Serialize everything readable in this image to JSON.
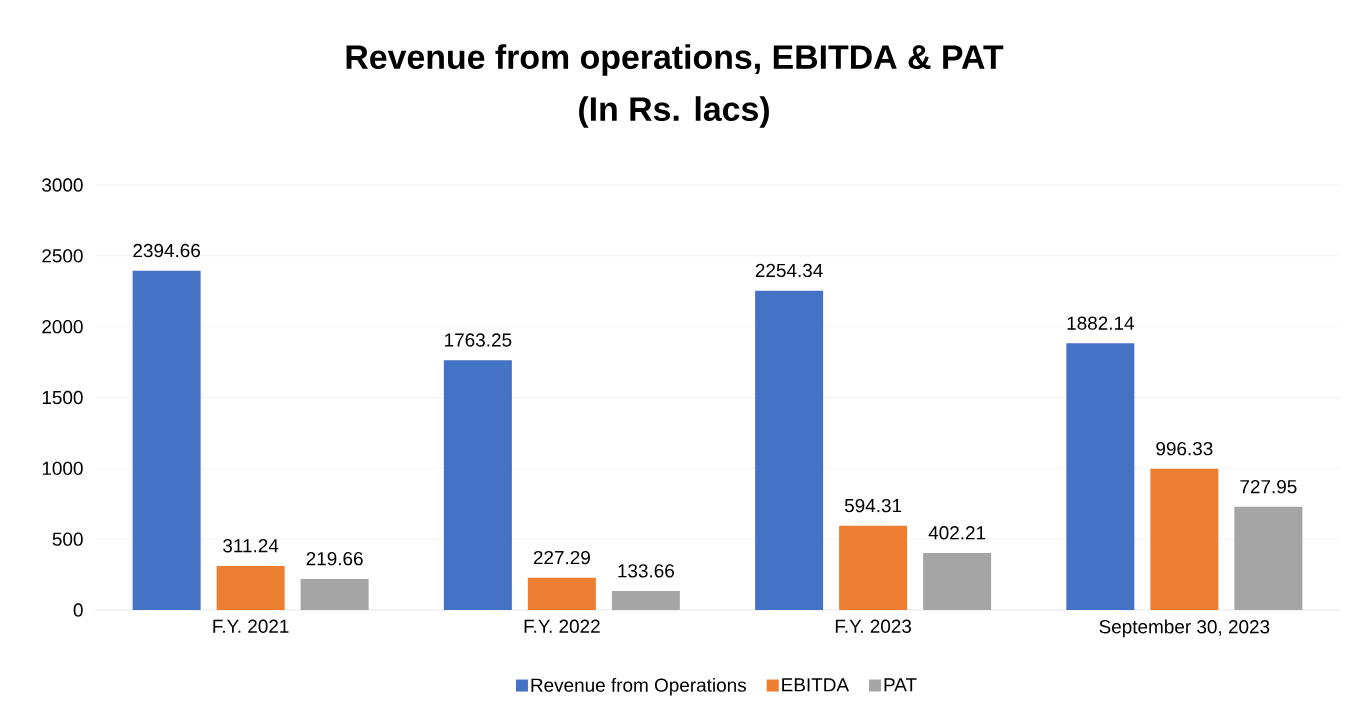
{
  "chart_data": {
    "type": "bar",
    "title": "Revenue from operations, EBITDA & PAT",
    "subtitle": "(In Rs. lacs)",
    "categories": [
      "F.Y. 2021",
      "F.Y. 2022",
      "F.Y. 2023",
      "September 30, 2023"
    ],
    "series": [
      {
        "name": "Revenue from Operations",
        "color": "#4472c4",
        "values": [
          2394.66,
          1763.25,
          2254.34,
          1882.14
        ]
      },
      {
        "name": "EBITDA",
        "color": "#ed7d31",
        "values": [
          311.24,
          227.29,
          594.31,
          996.33
        ]
      },
      {
        "name": "PAT",
        "color": "#a5a5a5",
        "values": [
          219.66,
          133.66,
          402.21,
          727.95
        ]
      }
    ],
    "ylim": [
      0,
      3000
    ],
    "yticks": [
      0,
      500,
      1000,
      1500,
      2000,
      2500,
      3000
    ],
    "grid": "y",
    "legend": "bottom",
    "data_labels": true
  }
}
